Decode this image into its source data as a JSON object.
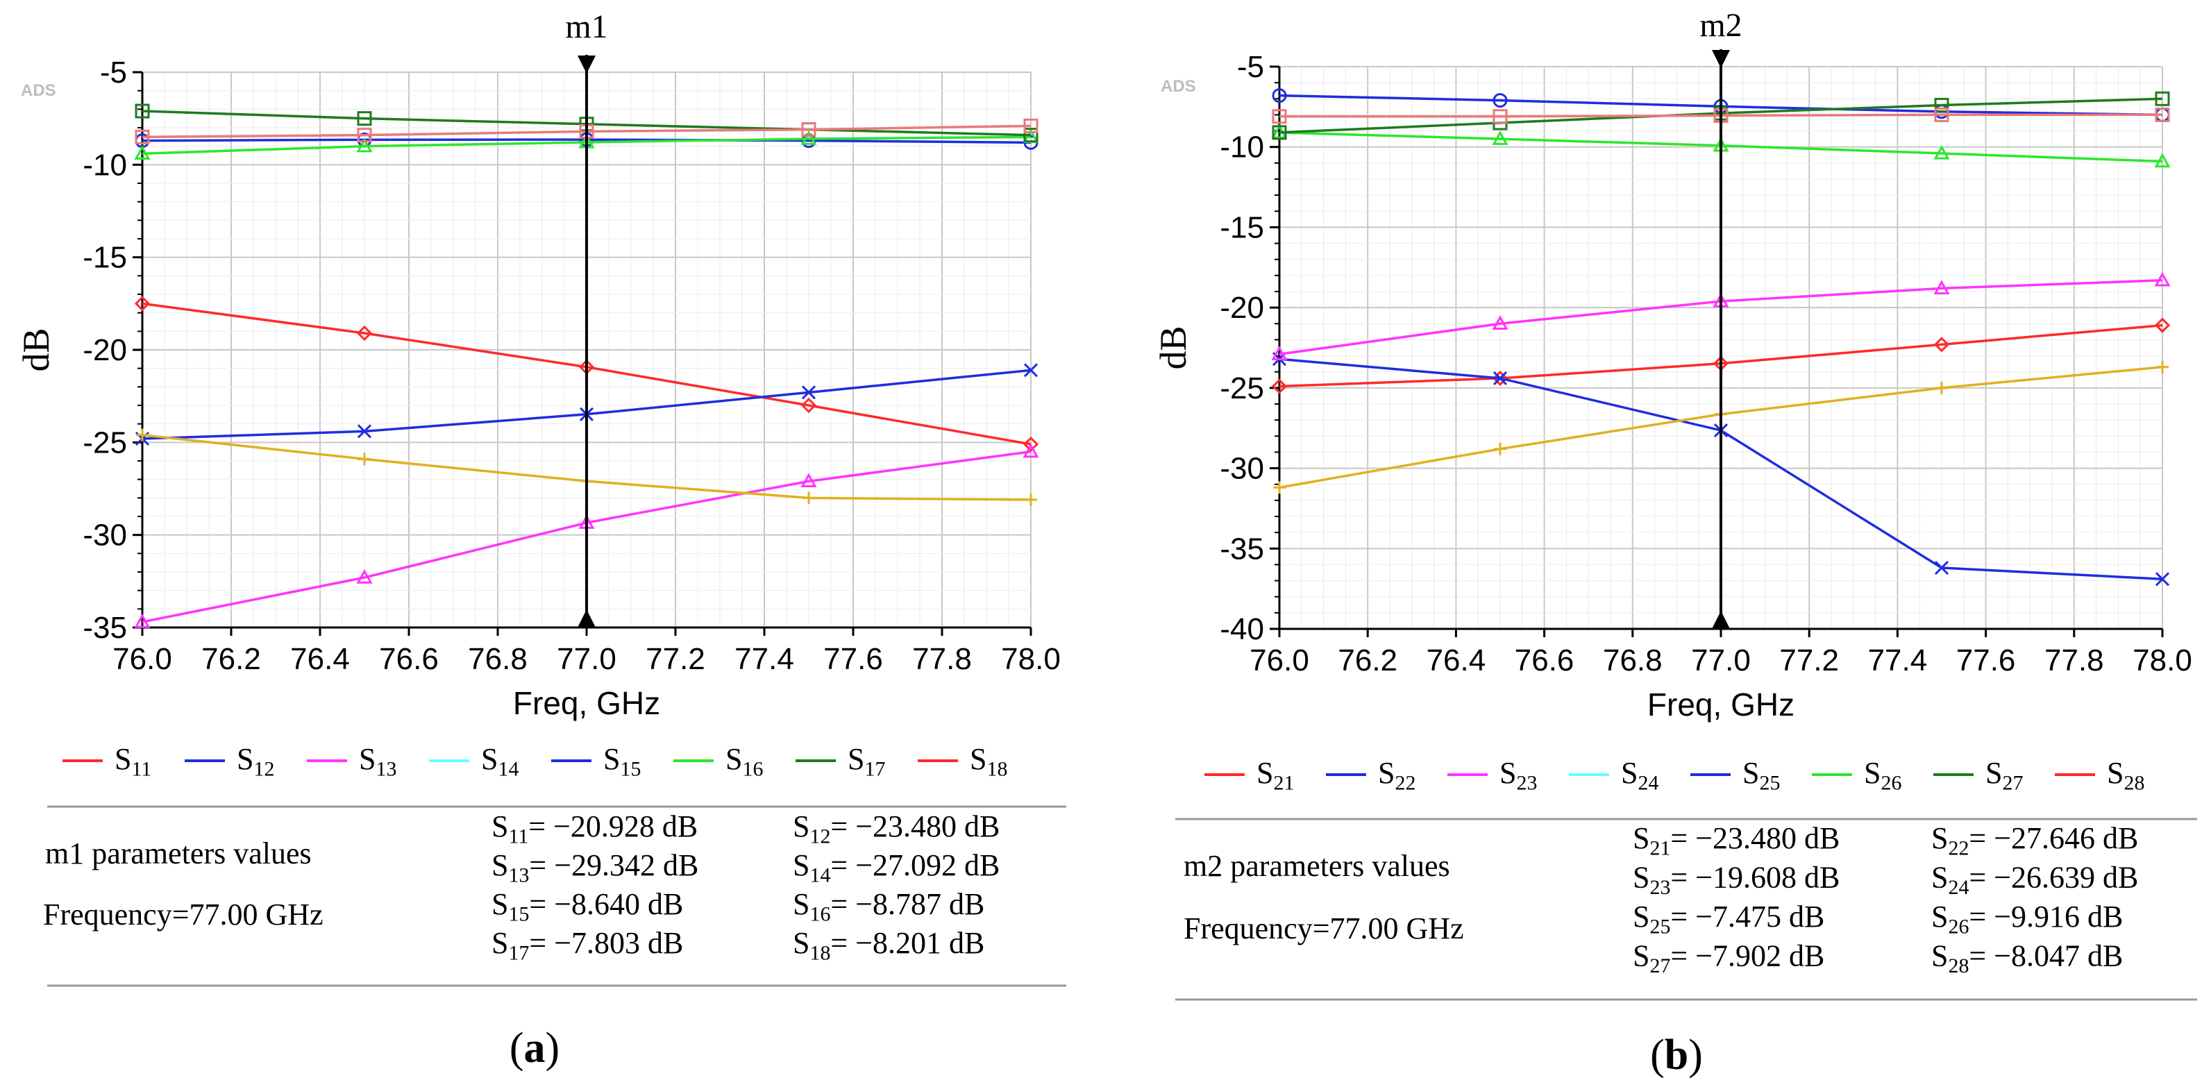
{
  "colors": {
    "S_red": "#ff2a2a",
    "S_blue": "#1f2de0",
    "S_magenta": "#ff33ff",
    "S_cyan": "#66ffff",
    "S_green": "#2de62d",
    "S_darkgreen": "#1f7a1f",
    "S_salmon": "#e87a7a",
    "S_gold": "#e0b020",
    "grid": "#d0d0d0",
    "marker": "#000000"
  },
  "chart_data": [
    {
      "type": "line",
      "panel_label": "(a)",
      "watermark": "ADS",
      "marker": {
        "name": "m1",
        "x": 77.0
      },
      "xlabel": "Freq, GHz",
      "ylabel": "dB",
      "xlim": [
        76.0,
        78.0
      ],
      "ylim": [
        -35,
        -5
      ],
      "xticks": [
        "76.0",
        "76.2",
        "76.4",
        "76.6",
        "76.8",
        "77.0",
        "77.2",
        "77.4",
        "77.6",
        "77.8",
        "78.0"
      ],
      "yticks": [
        "-5",
        "-10",
        "-15",
        "-20",
        "-25",
        "-30",
        "-35"
      ],
      "x": [
        76.0,
        76.5,
        77.0,
        77.5,
        78.0
      ],
      "series": [
        {
          "name": "S11",
          "sym": "diamond",
          "color": "#ff2a2a",
          "values": [
            -17.5,
            -19.1,
            -20.928,
            -23.0,
            -25.1
          ]
        },
        {
          "name": "S12",
          "sym": "x",
          "color": "#1f2de0",
          "values": [
            -24.8,
            -24.4,
            -23.48,
            -22.3,
            -21.1
          ]
        },
        {
          "name": "S13",
          "sym": "triangle",
          "color": "#ff33ff",
          "values": [
            -34.7,
            -32.3,
            -29.342,
            -27.1,
            -25.5
          ]
        },
        {
          "name": "S14",
          "sym": "plus",
          "color": "#e0b020",
          "values": [
            -24.6,
            -25.9,
            -27.092,
            -28.0,
            -28.1
          ]
        },
        {
          "name": "S15",
          "sym": "circle",
          "color": "#1f2de0",
          "values": [
            -8.7,
            -8.65,
            -8.64,
            -8.7,
            -8.8
          ]
        },
        {
          "name": "S16",
          "sym": "triangle",
          "color": "#2de62d",
          "values": [
            -9.4,
            -9.0,
            -8.787,
            -8.6,
            -8.5
          ]
        },
        {
          "name": "S17",
          "sym": "square",
          "color": "#1f7a1f",
          "values": [
            -7.1,
            -7.5,
            -7.803,
            -8.1,
            -8.4
          ]
        },
        {
          "name": "S18",
          "sym": "square",
          "color": "#e87a7a",
          "values": [
            -8.5,
            -8.4,
            -8.201,
            -8.1,
            -7.9
          ]
        }
      ],
      "legend": [
        {
          "base": "S",
          "sub": "11",
          "color": "#ff2a2a"
        },
        {
          "base": "S",
          "sub": "12",
          "color": "#1f2de0"
        },
        {
          "base": "S",
          "sub": "13",
          "color": "#ff33ff"
        },
        {
          "base": "S",
          "sub": "14",
          "color": "#66ffff"
        },
        {
          "base": "S",
          "sub": "15",
          "color": "#1f2de0"
        },
        {
          "base": "S",
          "sub": "16",
          "color": "#2de62d"
        },
        {
          "base": "S",
          "sub": "17",
          "color": "#1f7a1f"
        },
        {
          "base": "S",
          "sub": "18",
          "color": "#ff2a2a"
        }
      ],
      "table": {
        "title": "m1 parameters values",
        "frequency": "Frequency=77.00 GHz",
        "values": [
          {
            "sub": "11",
            "val": "= −20.928 dB"
          },
          {
            "sub": "12",
            "val": "= −23.480 dB"
          },
          {
            "sub": "13",
            "val": "= −29.342 dB"
          },
          {
            "sub": "14",
            "val": "= −27.092 dB"
          },
          {
            "sub": "15",
            "val": "= −8.640 dB"
          },
          {
            "sub": "16",
            "val": "= −8.787 dB"
          },
          {
            "sub": "17",
            "val": "= −7.803 dB"
          },
          {
            "sub": "18",
            "val": "= −8.201 dB"
          }
        ]
      }
    },
    {
      "type": "line",
      "panel_label": "(b)",
      "watermark": "ADS",
      "marker": {
        "name": "m2",
        "x": 77.0
      },
      "xlabel": "Freq, GHz",
      "ylabel": "dB",
      "xlim": [
        76.0,
        78.0
      ],
      "ylim": [
        -40,
        -5
      ],
      "xticks": [
        "76.0",
        "76.2",
        "76.4",
        "76.6",
        "76.8",
        "77.0",
        "77.2",
        "77.4",
        "77.6",
        "77.8",
        "78.0"
      ],
      "yticks": [
        "-5",
        "-10",
        "-15",
        "-20",
        "-25",
        "-30",
        "-35",
        "-40"
      ],
      "x": [
        76.0,
        76.5,
        77.0,
        77.5,
        78.0
      ],
      "series": [
        {
          "name": "S21",
          "sym": "diamond",
          "color": "#ff2a2a",
          "values": [
            -24.9,
            -24.4,
            -23.48,
            -22.3,
            -21.1
          ]
        },
        {
          "name": "S22",
          "sym": "x",
          "color": "#1f2de0",
          "values": [
            -23.2,
            -24.4,
            -27.646,
            -36.2,
            -36.9
          ]
        },
        {
          "name": "S23",
          "sym": "triangle",
          "color": "#ff33ff",
          "values": [
            -22.9,
            -21.0,
            -19.608,
            -18.8,
            -18.3
          ]
        },
        {
          "name": "S24",
          "sym": "plus",
          "color": "#e0b020",
          "values": [
            -31.2,
            -28.8,
            -26.639,
            -25.0,
            -23.7
          ]
        },
        {
          "name": "S25",
          "sym": "circle",
          "color": "#1f2de0",
          "values": [
            -6.8,
            -7.1,
            -7.475,
            -7.8,
            -8.0
          ]
        },
        {
          "name": "S26",
          "sym": "triangle",
          "color": "#2de62d",
          "values": [
            -9.1,
            -9.5,
            -9.916,
            -10.4,
            -10.9
          ]
        },
        {
          "name": "S27",
          "sym": "square",
          "color": "#1f7a1f",
          "values": [
            -9.1,
            -8.5,
            -7.902,
            -7.4,
            -7.0
          ]
        },
        {
          "name": "S28",
          "sym": "square",
          "color": "#e87a7a",
          "values": [
            -8.1,
            -8.1,
            -8.047,
            -8.0,
            -8.0
          ]
        }
      ],
      "legend": [
        {
          "base": "S",
          "sub": "21",
          "color": "#ff2a2a"
        },
        {
          "base": "S",
          "sub": "22",
          "color": "#1f2de0"
        },
        {
          "base": "S",
          "sub": "23",
          "color": "#ff33ff"
        },
        {
          "base": "S",
          "sub": "24",
          "color": "#66ffff"
        },
        {
          "base": "S",
          "sub": "25",
          "color": "#1f2de0"
        },
        {
          "base": "S",
          "sub": "26",
          "color": "#2de62d"
        },
        {
          "base": "S",
          "sub": "27",
          "color": "#1f7a1f"
        },
        {
          "base": "S",
          "sub": "28",
          "color": "#ff2a2a"
        }
      ],
      "table": {
        "title": "m2 parameters values",
        "frequency": "Frequency=77.00 GHz",
        "values": [
          {
            "sub": "21",
            "val": "= −23.480 dB"
          },
          {
            "sub": "22",
            "val": "= −27.646 dB"
          },
          {
            "sub": "23",
            "val": "= −19.608 dB"
          },
          {
            "sub": "24",
            "val": "= −26.639 dB"
          },
          {
            "sub": "25",
            "val": "= −7.475 dB"
          },
          {
            "sub": "26",
            "val": "= −9.916 dB"
          },
          {
            "sub": "27",
            "val": "= −7.902 dB"
          },
          {
            "sub": "28",
            "val": "= −8.047 dB"
          }
        ]
      }
    }
  ]
}
